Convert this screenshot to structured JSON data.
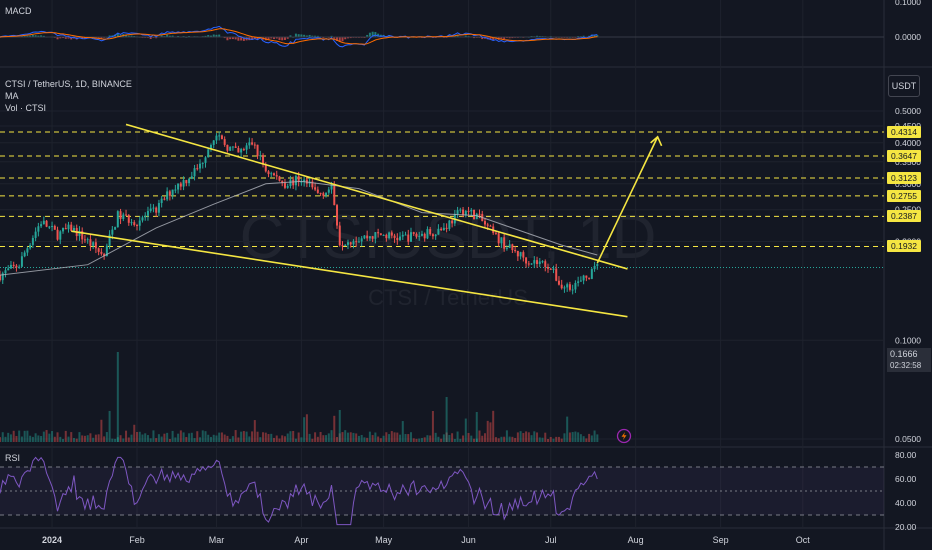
{
  "header": {
    "macd_label": "MACD",
    "symbol_title": "CTSI / TetherUS, 1D, BINANCE",
    "ma_label": "MA",
    "vol_label": "Vol · CTSI",
    "rsi_label": "RSI",
    "currency_button": "USDT",
    "watermark_symbol": "CTSIUSDT, 1D",
    "watermark_name": "CTSI / TetherUS"
  },
  "current_price": {
    "value": "0.1666",
    "countdown": "02:32:58"
  },
  "level_tags": [
    "0.4314",
    "0.3647",
    "0.3123",
    "0.2755",
    "0.2387",
    "0.1932"
  ],
  "colors": {
    "background": "#131722",
    "up": "#26a69a",
    "down": "#ef5350",
    "trendline": "#f5e642",
    "level_line": "#f5e642",
    "ma": "#b2b5be",
    "rsi": "#7e57c2",
    "macd": "#2962ff",
    "signal": "#ff6d00",
    "grid": "#1e222d"
  },
  "chart_data": [
    {
      "type": "candlestick",
      "title": "CTSI / TetherUS, 1D, BINANCE",
      "y_axis_ticks": [
        "0.5000",
        "0.4500",
        "0.4000",
        "0.3500",
        "0.3000",
        "0.2500",
        "0.2000",
        "0.1000",
        "0.0500"
      ],
      "x_axis_ticks": [
        "2024",
        "Feb",
        "Mar",
        "Apr",
        "May",
        "Jun",
        "Jul",
        "Aug",
        "Sep",
        "Oct"
      ],
      "ylim": [
        0.05,
        0.5
      ],
      "horizontal_levels": [
        0.4314,
        0.3647,
        0.3123,
        0.2755,
        0.2387,
        0.1932
      ],
      "trendlines": [
        {
          "name": "upper",
          "points": [
            [
              "2024-01-28",
              0.455
            ],
            [
              "2024-07-29",
              0.165
            ]
          ]
        },
        {
          "name": "lower",
          "points": [
            [
              "2024-01-08",
              0.215
            ],
            [
              "2024-07-29",
              0.118
            ]
          ]
        },
        {
          "name": "projection",
          "points": [
            [
              "2024-07-18",
              0.172
            ],
            [
              "2024-08-09",
              0.417
            ]
          ]
        }
      ],
      "close_path": [
        [
          "2023-12-13",
          0.158
        ],
        [
          "2023-12-20",
          0.17
        ],
        [
          "2023-12-28",
          0.23
        ],
        [
          "2024-01-03",
          0.21
        ],
        [
          "2024-01-08",
          0.22
        ],
        [
          "2024-01-14",
          0.2
        ],
        [
          "2024-01-20",
          0.18
        ],
        [
          "2024-01-25",
          0.24
        ],
        [
          "2024-02-01",
          0.23
        ],
        [
          "2024-02-08",
          0.25
        ],
        [
          "2024-02-14",
          0.29
        ],
        [
          "2024-02-19",
          0.31
        ],
        [
          "2024-02-24",
          0.34
        ],
        [
          "2024-02-29",
          0.42
        ],
        [
          "2024-03-05",
          0.39
        ],
        [
          "2024-03-09",
          0.37
        ],
        [
          "2024-03-14",
          0.4
        ],
        [
          "2024-03-19",
          0.33
        ],
        [
          "2024-03-26",
          0.3
        ],
        [
          "2024-04-01",
          0.31
        ],
        [
          "2024-04-07",
          0.28
        ],
        [
          "2024-04-12",
          0.29
        ],
        [
          "2024-04-15",
          0.2
        ],
        [
          "2024-04-22",
          0.205
        ],
        [
          "2024-04-30",
          0.21
        ],
        [
          "2024-05-07",
          0.205
        ],
        [
          "2024-05-15",
          0.21
        ],
        [
          "2024-05-23",
          0.22
        ],
        [
          "2024-05-30",
          0.25
        ],
        [
          "2024-06-04",
          0.24
        ],
        [
          "2024-06-10",
          0.21
        ],
        [
          "2024-06-16",
          0.19
        ],
        [
          "2024-06-23",
          0.175
        ],
        [
          "2024-06-30",
          0.17
        ],
        [
          "2024-07-05",
          0.145
        ],
        [
          "2024-07-12",
          0.15
        ],
        [
          "2024-07-18",
          0.1666
        ]
      ],
      "ma_path": [
        [
          "2023-12-13",
          0.158
        ],
        [
          "2024-01-14",
          0.17
        ],
        [
          "2024-02-08",
          0.22
        ],
        [
          "2024-02-29",
          0.26
        ],
        [
          "2024-03-19",
          0.3
        ],
        [
          "2024-04-01",
          0.305
        ],
        [
          "2024-04-22",
          0.29
        ],
        [
          "2024-05-15",
          0.245
        ],
        [
          "2024-06-04",
          0.24
        ],
        [
          "2024-07-05",
          0.195
        ],
        [
          "2024-07-18",
          0.182
        ]
      ]
    },
    {
      "type": "line",
      "title": "RSI",
      "y_axis_ticks": [
        "80.00",
        "60.00",
        "40.00",
        "20.00"
      ],
      "ylim": [
        20,
        80
      ],
      "bands": [
        70,
        50,
        30
      ]
    },
    {
      "type": "bar",
      "title": "MACD",
      "y_axis_ticks": [
        "0.1000",
        "0.0000"
      ],
      "ylim": [
        -0.05,
        0.1
      ]
    }
  ]
}
